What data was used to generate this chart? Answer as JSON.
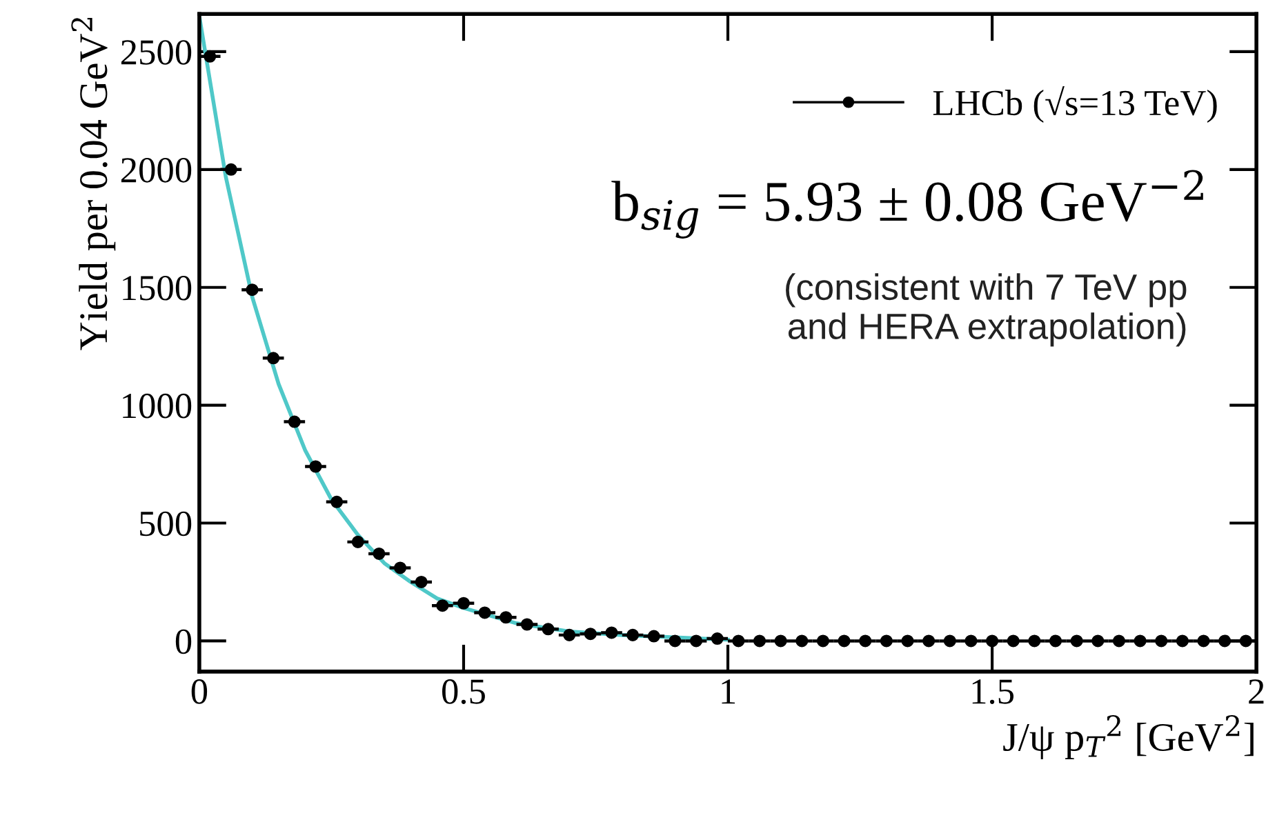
{
  "chart_data": {
    "type": "scatter",
    "xlabel": "J/ψ p$_{T}$$^{2}$ [GeV$^{2}$]",
    "ylabel": "Yield per 0.04 GeV$^{2}$",
    "xlim": [
      0,
      2
    ],
    "ylim": [
      -130,
      2660
    ],
    "xticks": [
      0,
      0.5,
      1,
      1.5,
      2
    ],
    "yticks": [
      0,
      500,
      1000,
      1500,
      2000,
      2500
    ],
    "grid": false,
    "legend": "top right",
    "marker": "circle",
    "annotations": [
      "b$_{sig}$ = 5.93 ± 0.08 GeV$^{−2}$",
      "(consistent with 7 TeV pp\nand HERA extrapolation)"
    ],
    "series": [
      {
        "name": "LHCb (√s=13 TeV)",
        "color": "#000000",
        "x": [
          0.02,
          0.06,
          0.1,
          0.14,
          0.18,
          0.22,
          0.26,
          0.3,
          0.34,
          0.38,
          0.42,
          0.46,
          0.5,
          0.54,
          0.58,
          0.62,
          0.66,
          0.7,
          0.74,
          0.78,
          0.82,
          0.86,
          0.9,
          0.94,
          0.98,
          1.02,
          1.06,
          1.1,
          1.14,
          1.18,
          1.22,
          1.26,
          1.3,
          1.34,
          1.38,
          1.42,
          1.46,
          1.5,
          1.54,
          1.58,
          1.62,
          1.66,
          1.7,
          1.74,
          1.78,
          1.82,
          1.86,
          1.9,
          1.94,
          1.98
        ],
        "values": [
          2480,
          2000,
          1490,
          1200,
          930,
          740,
          590,
          420,
          370,
          310,
          250,
          150,
          160,
          120,
          100,
          70,
          50,
          25,
          30,
          35,
          25,
          20,
          0,
          0,
          10,
          0,
          0,
          0,
          0,
          0,
          0,
          0,
          0,
          0,
          0,
          0,
          0,
          0,
          0,
          0,
          0,
          0,
          0,
          0,
          0,
          0,
          0,
          0,
          0,
          0
        ],
        "xerrors": [
          0.02,
          0.02,
          0.02,
          0.02,
          0.02,
          0.02,
          0.02,
          0.02,
          0.02,
          0.02,
          0.02,
          0.02,
          0.02,
          0.02,
          0.02,
          0.02,
          0.02,
          0.02,
          0.02,
          0.02,
          0.02,
          0.02,
          0.02,
          0.02,
          0.02,
          0.02,
          0.02,
          0.02,
          0.02,
          0.02,
          0.02,
          0.02,
          0.02,
          0.02,
          0.02,
          0.02,
          0.02,
          0.02,
          0.02,
          0.02,
          0.02,
          0.02,
          0.02,
          0.02,
          0.02,
          0.02,
          0.02,
          0.02,
          0.02,
          0.02
        ]
      },
      {
        "color": "#4fc8c8",
        "type": "line",
        "marker": "none",
        "x": [
          0,
          0.05,
          0.1,
          0.15,
          0.2,
          0.25,
          0.3,
          0.35,
          0.4,
          0.45,
          0.5,
          0.6,
          0.7,
          0.8,
          0.9,
          1.0
        ],
        "values": [
          2650,
          1970,
          1460,
          1090,
          810,
          600,
          450,
          330,
          250,
          180,
          140,
          75,
          40,
          25,
          15,
          5
        ]
      }
    ]
  }
}
